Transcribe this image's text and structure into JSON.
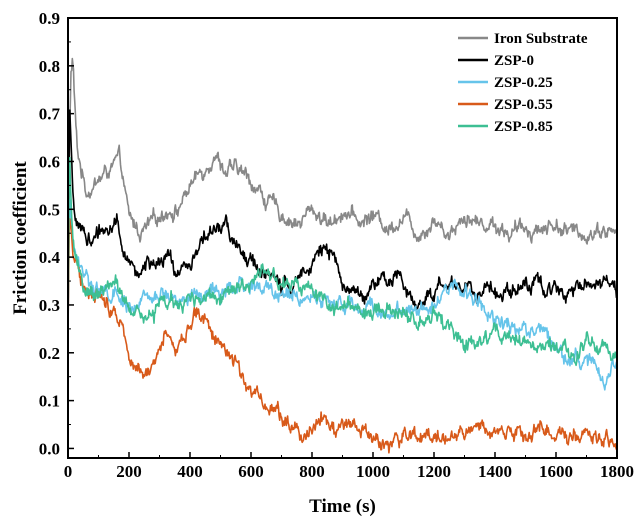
{
  "chart_data": {
    "type": "line",
    "title": "",
    "xlabel": "Time (s)",
    "ylabel": "Friction coefficient",
    "xlim": [
      0,
      1800
    ],
    "ylim": [
      -0.02,
      0.9
    ],
    "xticks": [
      0,
      200,
      400,
      600,
      800,
      1000,
      1200,
      1400,
      1600,
      1800
    ],
    "yticks": [
      0.0,
      0.1,
      0.2,
      0.3,
      0.4,
      0.5,
      0.6,
      0.7,
      0.8,
      0.9
    ],
    "xtick_labels": [
      "0",
      "200",
      "400",
      "600",
      "800",
      "1000",
      "1200",
      "1400",
      "1600",
      "1800"
    ],
    "ytick_labels": [
      "0.0",
      "0.1",
      "0.2",
      "0.3",
      "0.4",
      "0.5",
      "0.6",
      "0.7",
      "0.8",
      "0.9"
    ],
    "grid": false,
    "legend_position": "top-right",
    "noise_amplitude": 0.018,
    "series": [
      {
        "name": "Iron Substrate",
        "color": "#888888",
        "x": [
          0,
          5,
          10,
          15,
          22,
          30,
          45,
          60,
          80,
          100,
          130,
          170,
          200,
          240,
          280,
          320,
          360,
          400,
          440,
          480,
          520,
          560,
          600,
          650,
          700,
          760,
          800,
          860,
          900,
          960,
          1000,
          1050,
          1100,
          1150,
          1200,
          1250,
          1300,
          1350,
          1400,
          1450,
          1500,
          1550,
          1600,
          1650,
          1700,
          1750,
          1800
        ],
        "y": [
          0.3,
          0.65,
          0.78,
          0.82,
          0.72,
          0.62,
          0.58,
          0.54,
          0.55,
          0.56,
          0.58,
          0.6,
          0.48,
          0.45,
          0.47,
          0.5,
          0.5,
          0.55,
          0.58,
          0.62,
          0.58,
          0.58,
          0.56,
          0.52,
          0.49,
          0.47,
          0.5,
          0.47,
          0.5,
          0.47,
          0.49,
          0.46,
          0.49,
          0.45,
          0.48,
          0.45,
          0.49,
          0.47,
          0.47,
          0.45,
          0.46,
          0.46,
          0.47,
          0.45,
          0.45,
          0.46,
          0.45
        ]
      },
      {
        "name": "ZSP-0",
        "color": "#000000",
        "x": [
          0,
          5,
          10,
          15,
          25,
          40,
          60,
          90,
          120,
          160,
          180,
          200,
          230,
          260,
          300,
          330,
          360,
          400,
          440,
          480,
          520,
          540,
          570,
          620,
          680,
          740,
          780,
          830,
          860,
          900,
          960,
          1000,
          1060,
          1100,
          1140,
          1160,
          1200,
          1250,
          1300,
          1350,
          1400,
          1450,
          1500,
          1550,
          1600,
          1650,
          1700,
          1750,
          1800
        ],
        "y": [
          0.2,
          0.72,
          0.62,
          0.52,
          0.48,
          0.46,
          0.44,
          0.44,
          0.46,
          0.48,
          0.42,
          0.38,
          0.37,
          0.39,
          0.37,
          0.4,
          0.36,
          0.39,
          0.44,
          0.45,
          0.47,
          0.44,
          0.4,
          0.38,
          0.35,
          0.33,
          0.39,
          0.42,
          0.4,
          0.35,
          0.32,
          0.34,
          0.35,
          0.35,
          0.3,
          0.31,
          0.33,
          0.34,
          0.34,
          0.33,
          0.33,
          0.34,
          0.34,
          0.34,
          0.33,
          0.34,
          0.35,
          0.35,
          0.33
        ]
      },
      {
        "name": "ZSP-0.25",
        "color": "#66c4ea",
        "x": [
          0,
          5,
          10,
          15,
          25,
          40,
          60,
          90,
          120,
          160,
          200,
          240,
          280,
          320,
          360,
          400,
          440,
          480,
          520,
          560,
          600,
          660,
          720,
          780,
          840,
          900,
          960,
          1000,
          1040,
          1100,
          1150,
          1200,
          1250,
          1280,
          1310,
          1350,
          1400,
          1450,
          1500,
          1550,
          1600,
          1650,
          1700,
          1740,
          1760,
          1780,
          1800
        ],
        "y": [
          0.25,
          0.55,
          0.48,
          0.42,
          0.4,
          0.38,
          0.36,
          0.34,
          0.32,
          0.31,
          0.3,
          0.3,
          0.31,
          0.32,
          0.32,
          0.31,
          0.32,
          0.32,
          0.33,
          0.33,
          0.34,
          0.33,
          0.32,
          0.32,
          0.31,
          0.3,
          0.29,
          0.3,
          0.28,
          0.3,
          0.3,
          0.31,
          0.33,
          0.34,
          0.32,
          0.3,
          0.28,
          0.26,
          0.25,
          0.25,
          0.22,
          0.19,
          0.18,
          0.17,
          0.13,
          0.16,
          0.18
        ]
      },
      {
        "name": "ZSP-0.55",
        "color": "#d85a1a",
        "x": [
          0,
          5,
          10,
          15,
          25,
          40,
          60,
          80,
          100,
          120,
          140,
          160,
          180,
          200,
          220,
          240,
          260,
          280,
          300,
          320,
          340,
          360,
          380,
          400,
          420,
          440,
          460,
          480,
          500,
          520,
          540,
          560,
          580,
          600,
          620,
          640,
          660,
          680,
          700,
          720,
          740,
          760,
          780,
          800,
          820,
          840,
          860,
          880,
          900,
          920,
          940,
          960,
          980,
          1000,
          1050,
          1100,
          1150,
          1200,
          1250,
          1300,
          1350,
          1400,
          1450,
          1500,
          1550,
          1600,
          1650,
          1700,
          1750,
          1800
        ],
        "y": [
          0.25,
          0.5,
          0.45,
          0.42,
          0.4,
          0.37,
          0.34,
          0.33,
          0.32,
          0.31,
          0.3,
          0.29,
          0.26,
          0.2,
          0.19,
          0.17,
          0.16,
          0.17,
          0.19,
          0.24,
          0.23,
          0.22,
          0.22,
          0.27,
          0.29,
          0.27,
          0.26,
          0.24,
          0.22,
          0.21,
          0.19,
          0.17,
          0.14,
          0.12,
          0.11,
          0.1,
          0.09,
          0.08,
          0.07,
          0.06,
          0.05,
          0.04,
          0.03,
          0.05,
          0.07,
          0.06,
          0.05,
          0.04,
          0.06,
          0.05,
          0.04,
          0.03,
          0.02,
          0.02,
          0.01,
          0.02,
          0.02,
          0.03,
          0.02,
          0.04,
          0.04,
          0.03,
          0.04,
          0.03,
          0.04,
          0.03,
          0.03,
          0.02,
          0.01,
          0.02
        ]
      },
      {
        "name": "ZSP-0.85",
        "color": "#3dbf93",
        "x": [
          0,
          5,
          10,
          15,
          25,
          40,
          60,
          80,
          100,
          130,
          160,
          200,
          240,
          280,
          320,
          360,
          400,
          440,
          480,
          520,
          560,
          600,
          640,
          680,
          720,
          760,
          800,
          840,
          880,
          920,
          960,
          1000,
          1050,
          1100,
          1150,
          1200,
          1250,
          1300,
          1350,
          1400,
          1450,
          1500,
          1550,
          1600,
          1650,
          1700,
          1750,
          1800
        ],
        "y": [
          0.25,
          0.62,
          0.5,
          0.45,
          0.4,
          0.35,
          0.33,
          0.32,
          0.31,
          0.34,
          0.36,
          0.28,
          0.27,
          0.28,
          0.31,
          0.3,
          0.3,
          0.31,
          0.33,
          0.33,
          0.35,
          0.35,
          0.36,
          0.35,
          0.34,
          0.33,
          0.32,
          0.3,
          0.29,
          0.3,
          0.28,
          0.29,
          0.3,
          0.28,
          0.27,
          0.27,
          0.25,
          0.22,
          0.22,
          0.23,
          0.24,
          0.22,
          0.21,
          0.2,
          0.19,
          0.22,
          0.21,
          0.19
        ]
      }
    ]
  }
}
